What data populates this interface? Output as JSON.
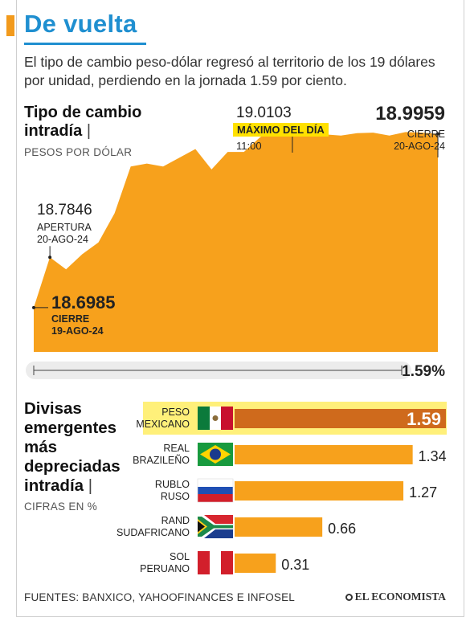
{
  "header": {
    "title": "De vuelta",
    "subtitle": "El tipo de cambio peso-dólar regresó al territorio de los 19 dólares por unidad, perdiendo en la jornada 1.59 por ciento."
  },
  "intraday": {
    "heading_line1": "Tipo de cambio",
    "heading_line2": "intradía",
    "separator": "|",
    "unit": "PESOS POR DÓLAR",
    "prev_close_value": "18.6985",
    "prev_close_label": "CIERRE",
    "prev_close_date": "19-AGO-24",
    "open_value": "18.7846",
    "open_label": "APERTURA",
    "open_date": "20-AGO-24",
    "max_value": "19.0103",
    "max_label": "MÁXIMO DEL DÍA",
    "max_time": "11:00",
    "close_value": "18.9959",
    "close_label": "CIERRE",
    "close_date": "20-AGO-24",
    "change_label": "1.59%"
  },
  "ranking": {
    "heading_line1": "Divisas",
    "heading_line2": "emergentes",
    "heading_line3": "más",
    "heading_line4": "depreciadas",
    "heading_line5": "intradía",
    "separator": "|",
    "unit": "CIFRAS EN %"
  },
  "chart_data": [
    {
      "type": "area",
      "title": "Tipo de cambio intradía",
      "ylabel": "PESOS POR DÓLAR",
      "ylim": [
        18.62,
        19.06
      ],
      "x": [
        0,
        1,
        2,
        3,
        4,
        5,
        6,
        7,
        8,
        9,
        10,
        11,
        12,
        13,
        14,
        15,
        16,
        17,
        18,
        19,
        20,
        21,
        22,
        23,
        24,
        25
      ],
      "series": [
        {
          "values": [
            18.6985,
            18.7846,
            18.764,
            18.79,
            18.81,
            18.86,
            18.94,
            18.945,
            18.94,
            18.955,
            18.97,
            18.935,
            18.965,
            18.965,
            18.99,
            19.005,
            19.0103,
            18.998,
            18.995,
            18.993,
            18.997,
            18.998,
            18.993,
            18.999,
            18.998,
            18.9959
          ]
        }
      ],
      "annotations": [
        {
          "point": "first",
          "label": "18.6985"
        },
        {
          "point": "open",
          "label": "18.7846"
        },
        {
          "point": "max",
          "label": "19.0103"
        },
        {
          "point": "last",
          "label": "18.9959"
        }
      ]
    },
    {
      "type": "bar",
      "orientation": "horizontal",
      "categories": [
        "PESO MEXICANO",
        "REAL BRAZILEÑO",
        "RUBLO RUSO",
        "RAND SUDAFRICANO",
        "SOL PERUANO"
      ],
      "values": [
        1.59,
        1.34,
        1.27,
        0.66,
        0.31
      ],
      "value_labels": [
        "1.59",
        "1.34",
        "1.27",
        "0.66",
        "0.31"
      ],
      "unit": "CIFRAS EN %",
      "highlight": "PESO MEXICANO",
      "colors": {
        "bar": "#f7a11c",
        "highlight_bar": "#cf6a1c",
        "highlight_bg": "#fff07a"
      }
    }
  ],
  "colors": {
    "accent": "#f29a1c",
    "title": "#1f8fd0",
    "area": "#f7a11c"
  },
  "footer": {
    "sources": "FUENTES: BANXICO, YAHOOFINANCES E INFOSEL",
    "brand": "EL ECONOMISTA"
  }
}
